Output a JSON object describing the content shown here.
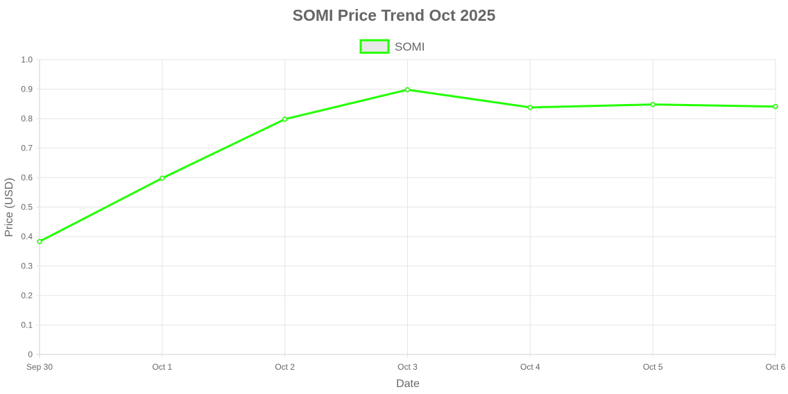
{
  "chart_data": {
    "type": "line",
    "title": "SOMI Price Trend Oct 2025",
    "xlabel": "Date",
    "ylabel": "Price (USD)",
    "categories": [
      "Sep 30",
      "Oct 1",
      "Oct 2",
      "Oct 3",
      "Oct 4",
      "Oct 5",
      "Oct 6"
    ],
    "series": [
      {
        "name": "SOMI",
        "values": [
          0.383,
          0.598,
          0.798,
          0.898,
          0.838,
          0.848,
          0.841
        ],
        "color": "#22ff00",
        "fill": "#e8e8e8"
      }
    ],
    "ylim": [
      0,
      1.0
    ],
    "yticks": [
      "0",
      "0.1",
      "0.2",
      "0.3",
      "0.4",
      "0.5",
      "0.6",
      "0.7",
      "0.8",
      "0.9",
      "1.0"
    ],
    "grid": true,
    "legend_position": "top-center"
  }
}
